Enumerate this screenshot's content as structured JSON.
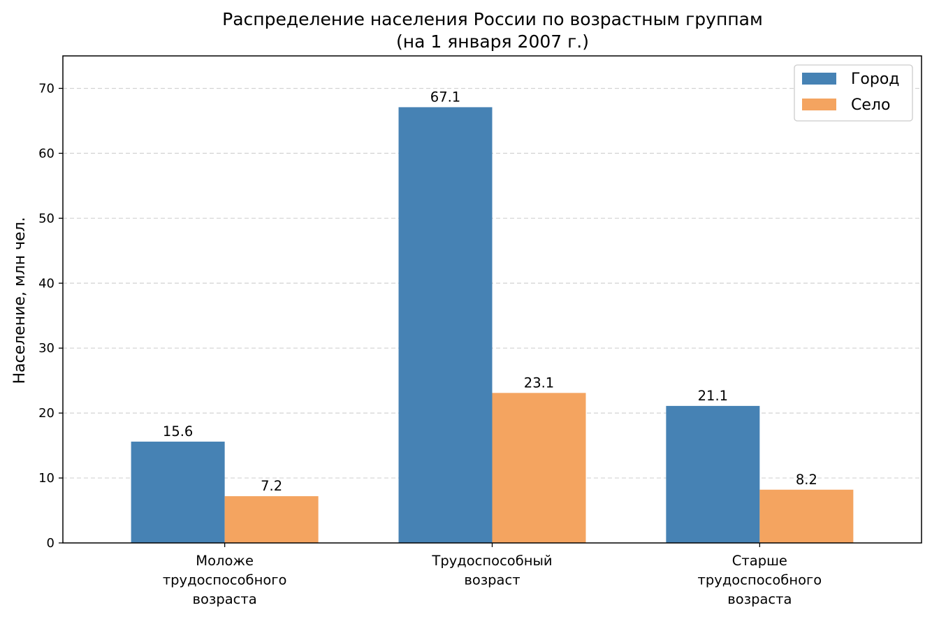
{
  "chart_data": {
    "type": "bar",
    "title": "Распределение населения России по возрастным группам",
    "subtitle": "(на 1 января 2007 г.)",
    "xlabel": "",
    "ylabel": "Население, млн чел.",
    "categories": [
      [
        "Моложе",
        "трудоспособного",
        "возраста"
      ],
      [
        "Трудоспособный",
        "возраст"
      ],
      [
        "Старше",
        "трудоспособного",
        "возраста"
      ]
    ],
    "series": [
      {
        "name": "Город",
        "color": "#4682b4",
        "values": [
          15.6,
          67.1,
          21.1
        ]
      },
      {
        "name": "Село",
        "color": "#f4a460",
        "values": [
          7.2,
          23.1,
          8.2
        ]
      }
    ],
    "ylim": [
      0,
      75
    ],
    "yticks": [
      0,
      10,
      20,
      30,
      40,
      50,
      60,
      70
    ],
    "grid": "y-dashed",
    "legend_position": "top-right"
  }
}
